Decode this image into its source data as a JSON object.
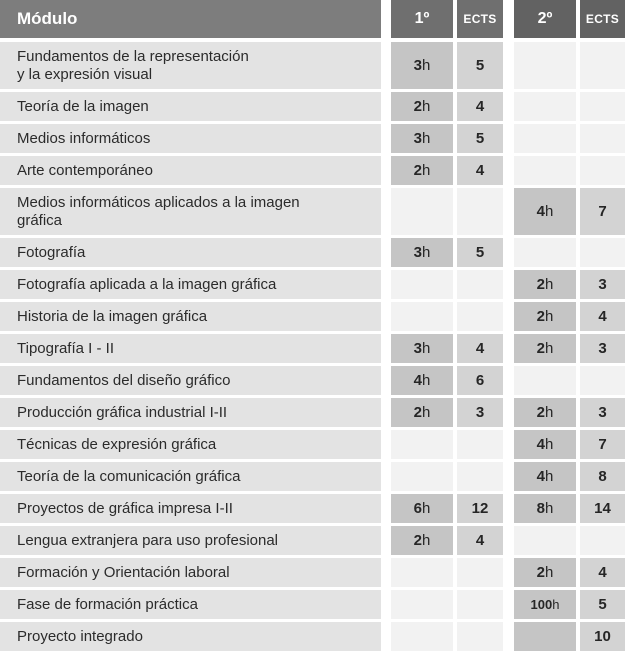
{
  "colors": {
    "header_module": "#7d7d7d",
    "header_year1": "#6f6f6f",
    "header_year2": "#626262",
    "cell_module": "#e3e3e3",
    "cell_hours": "#c5c5c5",
    "cell_ects": "#d3d3d3",
    "cell_empty": "#f2f2f2"
  },
  "table": {
    "header": {
      "module_label": "Módulo",
      "year1_label": "1º",
      "year1_ects_label": "ECTS",
      "year2_label": "2º",
      "year2_ects_label": "ECTS"
    },
    "hours_unit": "h",
    "rows": [
      {
        "module": "Fundamentos de la representación\ny la expresión visual",
        "two_line": true,
        "y1_hours": "3",
        "y1_ects": "5",
        "y2_hours": "",
        "y2_ects": "",
        "y2_shaded": false
      },
      {
        "module": "Teoría de la imagen",
        "two_line": false,
        "y1_hours": "2",
        "y1_ects": "4",
        "y2_hours": "",
        "y2_ects": "",
        "y2_shaded": false
      },
      {
        "module": "Medios informáticos",
        "two_line": false,
        "y1_hours": "3",
        "y1_ects": "5",
        "y2_hours": "",
        "y2_ects": "",
        "y2_shaded": false
      },
      {
        "module": "Arte contemporáneo",
        "two_line": false,
        "y1_hours": "2",
        "y1_ects": "4",
        "y2_hours": "",
        "y2_ects": "",
        "y2_shaded": false
      },
      {
        "module": "Medios informáticos aplicados a la imagen\ngráfica",
        "two_line": true,
        "y1_hours": "",
        "y1_ects": "",
        "y2_hours": "4",
        "y2_ects": "7",
        "y2_shaded": false
      },
      {
        "module": "Fotografía",
        "two_line": false,
        "y1_hours": "3",
        "y1_ects": "5",
        "y2_hours": "",
        "y2_ects": "",
        "y2_shaded": false
      },
      {
        "module": "Fotografía aplicada a la imagen gráfica",
        "two_line": false,
        "y1_hours": "",
        "y1_ects": "",
        "y2_hours": "2",
        "y2_ects": "3",
        "y2_shaded": false
      },
      {
        "module": "Historia de la imagen gráfica",
        "two_line": false,
        "y1_hours": "",
        "y1_ects": "",
        "y2_hours": "2",
        "y2_ects": "4",
        "y2_shaded": false
      },
      {
        "module": "Tipografía I - II",
        "two_line": false,
        "y1_hours": "3",
        "y1_ects": "4",
        "y2_hours": "2",
        "y2_ects": "3",
        "y2_shaded": false
      },
      {
        "module": "Fundamentos del diseño gráfico",
        "two_line": false,
        "y1_hours": "4",
        "y1_ects": "6",
        "y2_hours": "",
        "y2_ects": "",
        "y2_shaded": false
      },
      {
        "module": "Producción gráfica industrial I-II",
        "two_line": false,
        "y1_hours": "2",
        "y1_ects": "3",
        "y2_hours": "2",
        "y2_ects": "3",
        "y2_shaded": false
      },
      {
        "module": "Técnicas de expresión gráfica",
        "two_line": false,
        "y1_hours": "",
        "y1_ects": "",
        "y2_hours": "4",
        "y2_ects": "7",
        "y2_shaded": false
      },
      {
        "module": "Teoría de la comunicación gráfica",
        "two_line": false,
        "y1_hours": "",
        "y1_ects": "",
        "y2_hours": "4",
        "y2_ects": "8",
        "y2_shaded": false
      },
      {
        "module": "Proyectos de gráfica impresa I-II",
        "two_line": false,
        "y1_hours": "6",
        "y1_ects": "12",
        "y2_hours": "8",
        "y2_ects": "14",
        "y2_shaded": false
      },
      {
        "module": "Lengua extranjera para uso profesional",
        "two_line": false,
        "y1_hours": "2",
        "y1_ects": "4",
        "y2_hours": "",
        "y2_ects": "",
        "y2_shaded": false
      },
      {
        "module": "Formación y Orientación laboral",
        "two_line": false,
        "y1_hours": "",
        "y1_ects": "",
        "y2_hours": "2",
        "y2_ects": "4",
        "y2_shaded": false
      },
      {
        "module": "Fase de formación práctica",
        "two_line": false,
        "y1_hours": "",
        "y1_ects": "",
        "y2_hours": "100",
        "y2_ects": "5",
        "y2_shaded": false
      },
      {
        "module": "Proyecto integrado",
        "two_line": false,
        "y1_hours": "",
        "y1_ects": "",
        "y2_hours": "",
        "y2_ects": "10",
        "y2_shaded": true
      }
    ]
  }
}
